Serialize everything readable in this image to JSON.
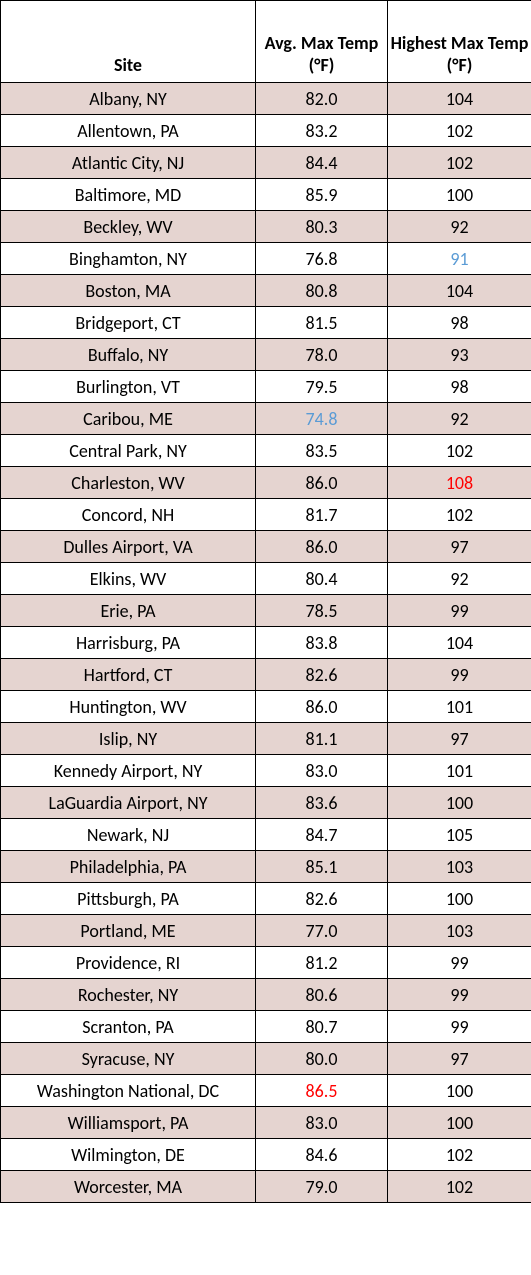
{
  "styling": {
    "shaded_bg": "#e5d4d0",
    "unshaded_bg": "#ffffff",
    "border_color": "#000000",
    "text_color": "#000000",
    "highlight_blue": "#5a9bd5",
    "highlight_red": "#ff0000",
    "font_family": "Calibri, Arial, sans-serif",
    "header_fontsize": 18,
    "cell_fontsize": 18,
    "col_widths": {
      "site": 255,
      "avg": 132,
      "high": 144
    }
  },
  "headers": {
    "site": "Site",
    "avg": "Avg. Max Temp (°F)",
    "high": "Highest Max Temp (°F)"
  },
  "rows": [
    {
      "site": "Albany, NY",
      "avg": "82.0",
      "high": "104",
      "shaded": true
    },
    {
      "site": "Allentown, PA",
      "avg": "83.2",
      "high": "102",
      "shaded": false
    },
    {
      "site": "Atlantic City, NJ",
      "avg": "84.4",
      "high": "102",
      "shaded": true
    },
    {
      "site": "Baltimore, MD",
      "avg": "85.9",
      "high": "100",
      "shaded": false
    },
    {
      "site": "Beckley, WV",
      "avg": "80.3",
      "high": "92",
      "shaded": true
    },
    {
      "site": "Binghamton, NY",
      "avg": "76.8",
      "high": "91",
      "shaded": false,
      "high_hl": "blue"
    },
    {
      "site": "Boston, MA",
      "avg": "80.8",
      "high": "104",
      "shaded": true
    },
    {
      "site": "Bridgeport, CT",
      "avg": "81.5",
      "high": "98",
      "shaded": false
    },
    {
      "site": "Buffalo, NY",
      "avg": "78.0",
      "high": "93",
      "shaded": true
    },
    {
      "site": "Burlington, VT",
      "avg": "79.5",
      "high": "98",
      "shaded": false
    },
    {
      "site": "Caribou, ME",
      "avg": "74.8",
      "high": "92",
      "shaded": true,
      "avg_hl": "blue"
    },
    {
      "site": "Central Park, NY",
      "avg": "83.5",
      "high": "102",
      "shaded": false
    },
    {
      "site": "Charleston, WV",
      "avg": "86.0",
      "high": "108",
      "shaded": true,
      "high_hl": "red"
    },
    {
      "site": "Concord, NH",
      "avg": "81.7",
      "high": "102",
      "shaded": false
    },
    {
      "site": "Dulles Airport, VA",
      "avg": "86.0",
      "high": "97",
      "shaded": true
    },
    {
      "site": "Elkins, WV",
      "avg": "80.4",
      "high": "92",
      "shaded": false
    },
    {
      "site": "Erie, PA",
      "avg": "78.5",
      "high": "99",
      "shaded": true
    },
    {
      "site": "Harrisburg, PA",
      "avg": "83.8",
      "high": "104",
      "shaded": false
    },
    {
      "site": "Hartford, CT",
      "avg": "82.6",
      "high": "99",
      "shaded": true
    },
    {
      "site": "Huntington, WV",
      "avg": "86.0",
      "high": "101",
      "shaded": false
    },
    {
      "site": "Islip, NY",
      "avg": "81.1",
      "high": "97",
      "shaded": true
    },
    {
      "site": "Kennedy Airport, NY",
      "avg": "83.0",
      "high": "101",
      "shaded": false
    },
    {
      "site": "LaGuardia Airport, NY",
      "avg": "83.6",
      "high": "100",
      "shaded": true
    },
    {
      "site": "Newark, NJ",
      "avg": "84.7",
      "high": "105",
      "shaded": false
    },
    {
      "site": "Philadelphia, PA",
      "avg": "85.1",
      "high": "103",
      "shaded": true
    },
    {
      "site": "Pittsburgh, PA",
      "avg": "82.6",
      "high": "100",
      "shaded": false
    },
    {
      "site": "Portland, ME",
      "avg": "77.0",
      "high": "103",
      "shaded": true
    },
    {
      "site": "Providence, RI",
      "avg": "81.2",
      "high": "99",
      "shaded": false
    },
    {
      "site": "Rochester, NY",
      "avg": "80.6",
      "high": "99",
      "shaded": true
    },
    {
      "site": "Scranton, PA",
      "avg": "80.7",
      "high": "99",
      "shaded": false
    },
    {
      "site": "Syracuse, NY",
      "avg": "80.0",
      "high": "97",
      "shaded": true
    },
    {
      "site": "Washington National, DC",
      "avg": "86.5",
      "high": "100",
      "shaded": false,
      "avg_hl": "red"
    },
    {
      "site": "Williamsport, PA",
      "avg": "83.0",
      "high": "100",
      "shaded": true
    },
    {
      "site": "Wilmington, DE",
      "avg": "84.6",
      "high": "102",
      "shaded": false
    },
    {
      "site": "Worcester, MA",
      "avg": "79.0",
      "high": "102",
      "shaded": true
    }
  ]
}
